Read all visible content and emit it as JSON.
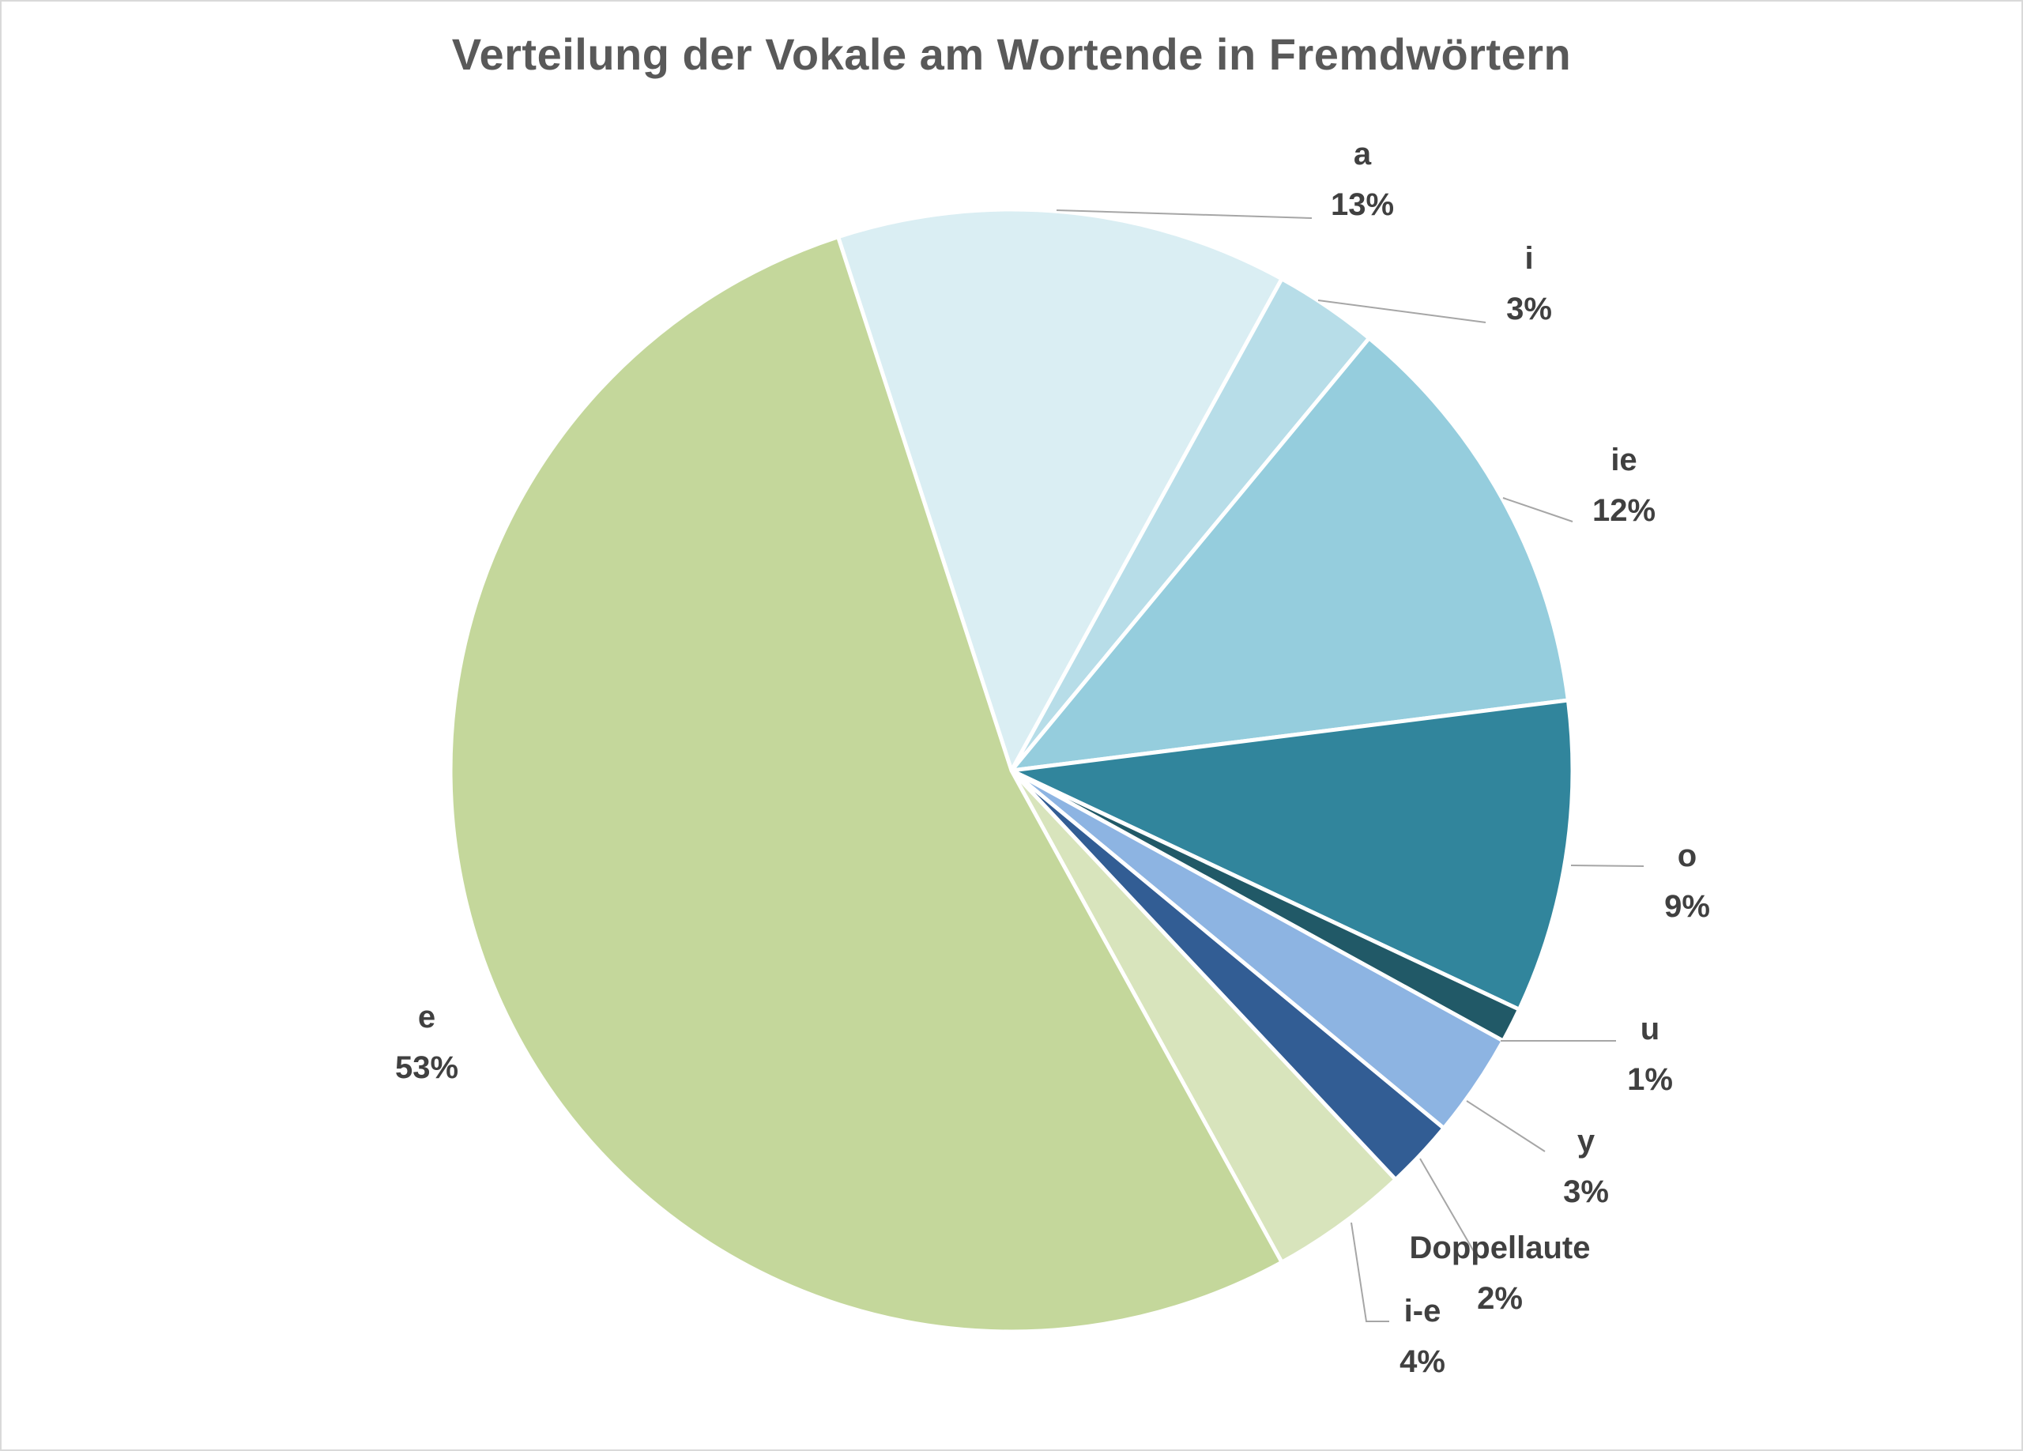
{
  "chart_data": {
    "type": "pie",
    "title": "Verteilung der Vokale am Wortende in Fremdwörtern",
    "start_angle_deg": -18,
    "direction": "clockwise",
    "legend": "none",
    "slices": [
      {
        "label": "a",
        "value": 13,
        "display": "13%",
        "color": "#DAEEF3"
      },
      {
        "label": "i",
        "value": 3,
        "display": "3%",
        "color": "#B7DDE8"
      },
      {
        "label": "ie",
        "value": 12,
        "display": "12%",
        "color": "#95CDDD"
      },
      {
        "label": "o",
        "value": 9,
        "display": "9%",
        "color": "#31859C"
      },
      {
        "label": "u",
        "value": 1,
        "display": "1%",
        "color": "#215967"
      },
      {
        "label": "y",
        "value": 3,
        "display": "3%",
        "color": "#8DB4E2"
      },
      {
        "label": "Doppellaute",
        "value": 2,
        "display": "2%",
        "color": "#325D94"
      },
      {
        "label": "i-e",
        "value": 4,
        "display": "4%",
        "color": "#D8E4BC"
      },
      {
        "label": "e",
        "value": 53,
        "display": "53%",
        "color": "#C4D79B"
      }
    ]
  }
}
